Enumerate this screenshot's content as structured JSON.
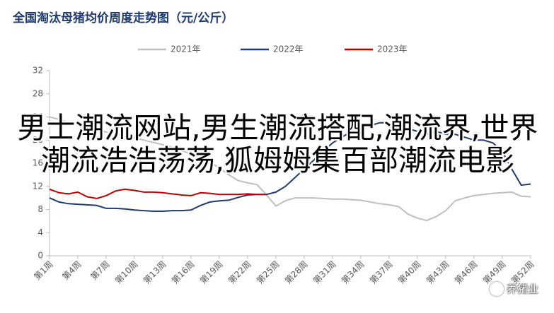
{
  "chart_data": {
    "type": "line",
    "title": "全国淘汰母猪均价周度走势图（元/公斤）",
    "categories": [
      "第1周",
      null,
      null,
      "第4周",
      null,
      null,
      "第7周",
      null,
      null,
      "第10周",
      null,
      null,
      "第13周",
      null,
      null,
      "第16周",
      null,
      null,
      "第19周",
      null,
      null,
      "第22周",
      null,
      null,
      "第25周",
      null,
      null,
      "第28周",
      null,
      null,
      "第31周",
      null,
      null,
      "第34周",
      null,
      null,
      "第37周",
      null,
      null,
      "第40周",
      null,
      null,
      "第43周",
      null,
      null,
      "第46周",
      null,
      null,
      "第49周",
      null,
      null,
      "第52周"
    ],
    "series": [
      {
        "name": "2021年",
        "color": "#bfbfbf",
        "values": [
          24,
          23.6,
          23,
          22.6,
          22.2,
          21.8,
          21.4,
          21,
          20.7,
          20.4,
          20,
          19.6,
          19.2,
          18.8,
          18.2,
          17.6,
          17,
          16.2,
          15.2,
          14,
          13,
          12.6,
          12.3,
          10.5,
          8.6,
          9.5,
          10,
          10,
          10,
          9.9,
          9.8,
          9.8,
          9.7,
          9.6,
          9.3,
          9,
          8.8,
          8.5,
          7.2,
          6.5,
          6.1,
          6.8,
          7.8,
          9.5,
          10,
          10.4,
          10.6,
          10.8,
          10.9,
          11,
          10.3,
          10.2
        ]
      },
      {
        "name": "2022年",
        "color": "#1f3a6e",
        "values": [
          10,
          9.3,
          9,
          8.9,
          8.8,
          8.7,
          8.2,
          8.2,
          8.1,
          7.9,
          7.8,
          7.7,
          7.7,
          7.8,
          7.8,
          7.9,
          8.7,
          9.3,
          9.5,
          9.6,
          10.1,
          10.5,
          10.6,
          10.6,
          11,
          12,
          13.5,
          15,
          16.5,
          18,
          19.5,
          20.5,
          21.5,
          22,
          22.5,
          23,
          23,
          22.5,
          22,
          21.5,
          21,
          21.5,
          21,
          21,
          20.5,
          20,
          20,
          19.5,
          18,
          15,
          12.2,
          12.4
        ]
      },
      {
        "name": "2023年",
        "color": "#c00000",
        "values": [
          11.5,
          10.9,
          10.7,
          11,
          10.2,
          9.9,
          10.4,
          11.2,
          11.5,
          11.3,
          11,
          11,
          10.9,
          10.7,
          10.5,
          10.4,
          10.9,
          10.8,
          10.6,
          10.6,
          10.6,
          10.7,
          10.6,
          10.6,
          null,
          null,
          null,
          null,
          null,
          null,
          null,
          null,
          null,
          null,
          null,
          null,
          null,
          null,
          null,
          null,
          null,
          null,
          null,
          null,
          null,
          null,
          null,
          null,
          null,
          null,
          null,
          null
        ]
      }
    ],
    "ylim": [
      0,
      32
    ],
    "yticks": [
      0,
      4,
      8,
      12,
      16,
      20,
      24,
      28,
      32
    ],
    "grid": false
  },
  "overlay_text": "男士潮流网站,男生潮流搭配,潮流界,世界潮流浩浩荡荡,狐姆姆集百部潮流电影",
  "watermark": "养猪业"
}
